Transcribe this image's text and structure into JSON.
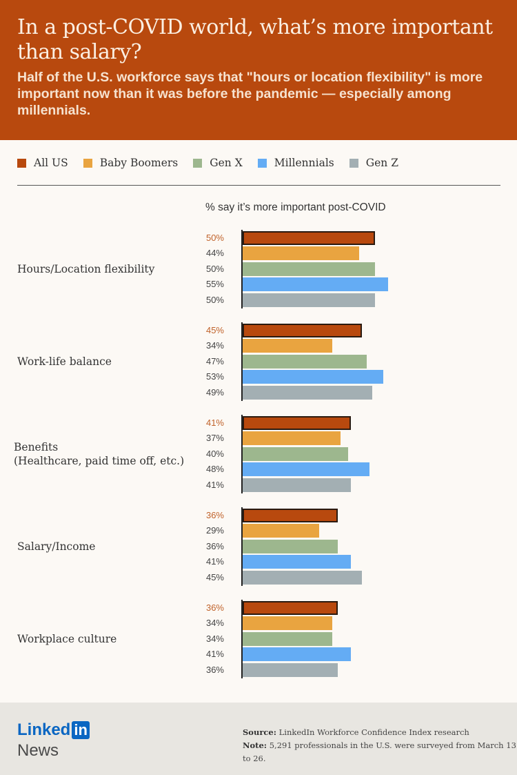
{
  "header": {
    "title": "In a post-COVID world, what’s more important than salary?",
    "subtitle": "Half of the U.S. workforce says that \"hours or location flexibility\" is more important now than it was before the pandemic — especially among millennials."
  },
  "chart_data": {
    "type": "bar",
    "orientation": "horizontal",
    "title": "In a post-COVID world, what’s more important than salary?",
    "xlabel": "% say it’s more important post-COVID",
    "xlim": [
      0,
      60
    ],
    "legend_position": "top-left",
    "categories": [
      "Hours/Location flexibility",
      "Work-life balance",
      "Benefits\n(Healthcare, paid time off, etc.)",
      "Salary/Income",
      "Workplace culture"
    ],
    "series": [
      {
        "name": "All US",
        "color": "#b8490e",
        "values": [
          50,
          45,
          41,
          36,
          36
        ]
      },
      {
        "name": "Baby Boomers",
        "color": "#e9a440",
        "values": [
          44,
          34,
          37,
          29,
          34
        ]
      },
      {
        "name": "Gen X",
        "color": "#9db78e",
        "values": [
          50,
          47,
          40,
          36,
          34
        ]
      },
      {
        "name": "Millennials",
        "color": "#64acf4",
        "values": [
          55,
          53,
          48,
          41,
          41
        ]
      },
      {
        "name": "Gen Z",
        "color": "#a3afb3",
        "values": [
          50,
          49,
          41,
          45,
          36
        ]
      }
    ]
  },
  "footer": {
    "logo_linked": "Linked",
    "logo_in": "in",
    "logo_news": "News",
    "source_label": "Source:",
    "source_text": "LinkedIn Workforce Confidence Index research",
    "note_label": "Note:",
    "note_text": "5,291 professionals in the U.S. were surveyed from March 13 to 26."
  }
}
